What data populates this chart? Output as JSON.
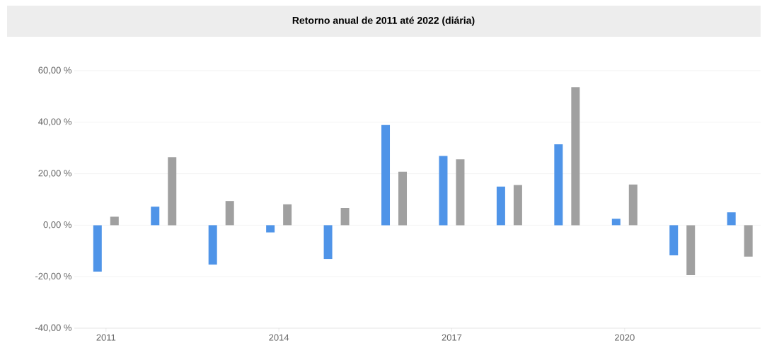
{
  "chart_data": {
    "type": "bar",
    "title": "Retorno anual de 2011 até 2022 (diária)",
    "categories": [
      "2011",
      null,
      null,
      "2014",
      null,
      null,
      "2017",
      null,
      null,
      "2020",
      null,
      null
    ],
    "series": [
      {
        "color": "#4f94e8",
        "values": [
          -18.0,
          7.2,
          -15.3,
          -2.8,
          -13.1,
          38.9,
          26.9,
          15.0,
          31.4,
          2.5,
          -11.7,
          5.0
        ]
      },
      {
        "color": "#a0a0a0",
        "values": [
          3.3,
          26.4,
          9.4,
          8.1,
          6.7,
          20.8,
          25.6,
          15.6,
          53.6,
          15.8,
          -19.4,
          -12.2
        ]
      }
    ],
    "ylim": [
      -40,
      60
    ],
    "yticks": [
      {
        "value": -40,
        "label": "-40,00 %"
      },
      {
        "value": -20,
        "label": "-20,00 %"
      },
      {
        "value": 0,
        "label": "0,00 %"
      },
      {
        "value": 20,
        "label": "20,00 %"
      },
      {
        "value": 40,
        "label": "40,00 %"
      },
      {
        "value": 60,
        "label": "60,00 %"
      }
    ],
    "grid": "y"
  }
}
